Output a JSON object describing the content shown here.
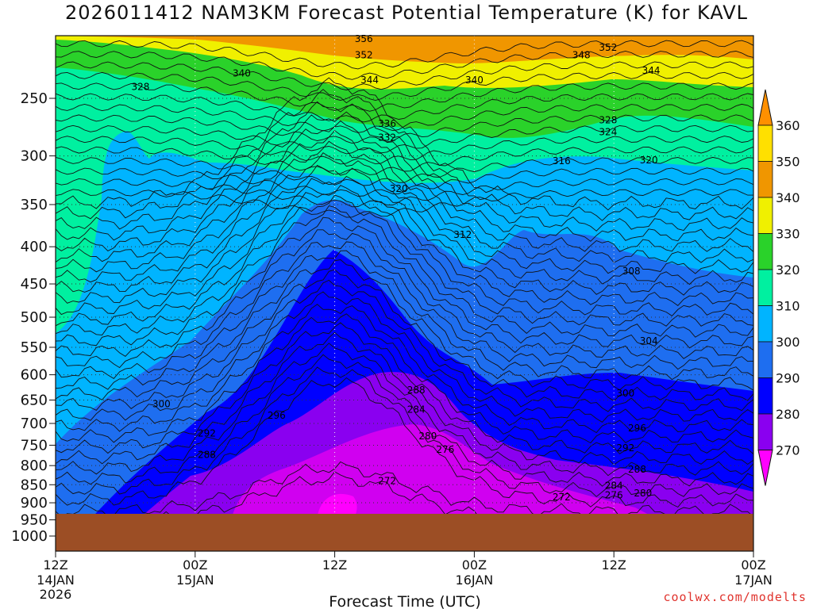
{
  "chart_data": {
    "type": "heatmap",
    "title": "2026011412 NAM3KM Forecast Potential Temperature (K) for KAVL",
    "xlabel": "Forecast Time (UTC)",
    "ylabel": "",
    "x_ticks": [
      {
        "hour": 0,
        "label": "12Z",
        "sub": "14JAN",
        "sub2": "2026"
      },
      {
        "hour": 12,
        "label": "00Z",
        "sub": "15JAN",
        "sub2": ""
      },
      {
        "hour": 24,
        "label": "12Z",
        "sub": "",
        "sub2": ""
      },
      {
        "hour": 36,
        "label": "00Z",
        "sub": "16JAN",
        "sub2": ""
      },
      {
        "hour": 48,
        "label": "12Z",
        "sub": "",
        "sub2": ""
      },
      {
        "hour": 60,
        "label": "00Z",
        "sub": "17JAN",
        "sub2": ""
      }
    ],
    "y_ticks": [
      250,
      300,
      350,
      400,
      450,
      500,
      550,
      600,
      650,
      700,
      750,
      800,
      850,
      900,
      950,
      1000
    ],
    "xlim": [
      0,
      60
    ],
    "ylim": [
      1050,
      200
    ],
    "ground_level_hpa": 932,
    "colorbar": {
      "levels": [
        270,
        280,
        290,
        300,
        310,
        320,
        330,
        340,
        350,
        360
      ],
      "colors": [
        "#ff00ff",
        "#d000f0",
        "#8a00f0",
        "#0000ff",
        "#1e6ef0",
        "#00b4ff",
        "#00f0a0",
        "#2ad22a",
        "#f0f000",
        "#f09600",
        "#ffe000",
        "#ff9000"
      ]
    },
    "contour_labels": [
      {
        "text": "356",
        "hour": 26.5,
        "hpa": 207
      },
      {
        "text": "352",
        "hour": 26.5,
        "hpa": 218
      },
      {
        "text": "344",
        "hour": 27,
        "hpa": 236
      },
      {
        "text": "340",
        "hour": 16,
        "hpa": 231
      },
      {
        "text": "328",
        "hour": 7.3,
        "hpa": 241
      },
      {
        "text": "348",
        "hour": 45.2,
        "hpa": 218
      },
      {
        "text": "352",
        "hour": 47.5,
        "hpa": 213
      },
      {
        "text": "344",
        "hour": 51.2,
        "hpa": 229
      },
      {
        "text": "340",
        "hour": 36,
        "hpa": 236
      },
      {
        "text": "336",
        "hour": 28.5,
        "hpa": 271
      },
      {
        "text": "332",
        "hour": 28.5,
        "hpa": 283
      },
      {
        "text": "328",
        "hour": 47.5,
        "hpa": 268
      },
      {
        "text": "324",
        "hour": 47.5,
        "hpa": 278
      },
      {
        "text": "316",
        "hour": 43.5,
        "hpa": 305
      },
      {
        "text": "320",
        "hour": 51,
        "hpa": 304
      },
      {
        "text": "320",
        "hour": 29.5,
        "hpa": 333
      },
      {
        "text": "312",
        "hour": 35,
        "hpa": 385
      },
      {
        "text": "308",
        "hour": 49.5,
        "hpa": 432
      },
      {
        "text": "304",
        "hour": 51,
        "hpa": 539
      },
      {
        "text": "300",
        "hour": 9.1,
        "hpa": 658
      },
      {
        "text": "296",
        "hour": 19,
        "hpa": 683
      },
      {
        "text": "292",
        "hour": 13,
        "hpa": 722
      },
      {
        "text": "288",
        "hour": 13,
        "hpa": 773
      },
      {
        "text": "288",
        "hour": 31,
        "hpa": 630
      },
      {
        "text": "284",
        "hour": 31,
        "hpa": 670
      },
      {
        "text": "280",
        "hour": 32,
        "hpa": 729
      },
      {
        "text": "276",
        "hour": 33.5,
        "hpa": 761
      },
      {
        "text": "272",
        "hour": 28.5,
        "hpa": 840
      },
      {
        "text": "300",
        "hour": 49,
        "hpa": 636
      },
      {
        "text": "296",
        "hour": 50,
        "hpa": 711
      },
      {
        "text": "292",
        "hour": 49,
        "hpa": 757
      },
      {
        "text": "288",
        "hour": 50,
        "hpa": 810
      },
      {
        "text": "284",
        "hour": 48,
        "hpa": 853
      },
      {
        "text": "280",
        "hour": 50.5,
        "hpa": 873
      },
      {
        "text": "276",
        "hour": 48,
        "hpa": 879
      },
      {
        "text": "272",
        "hour": 43.5,
        "hpa": 884
      }
    ]
  },
  "credit": "coolwx.com/modelts"
}
